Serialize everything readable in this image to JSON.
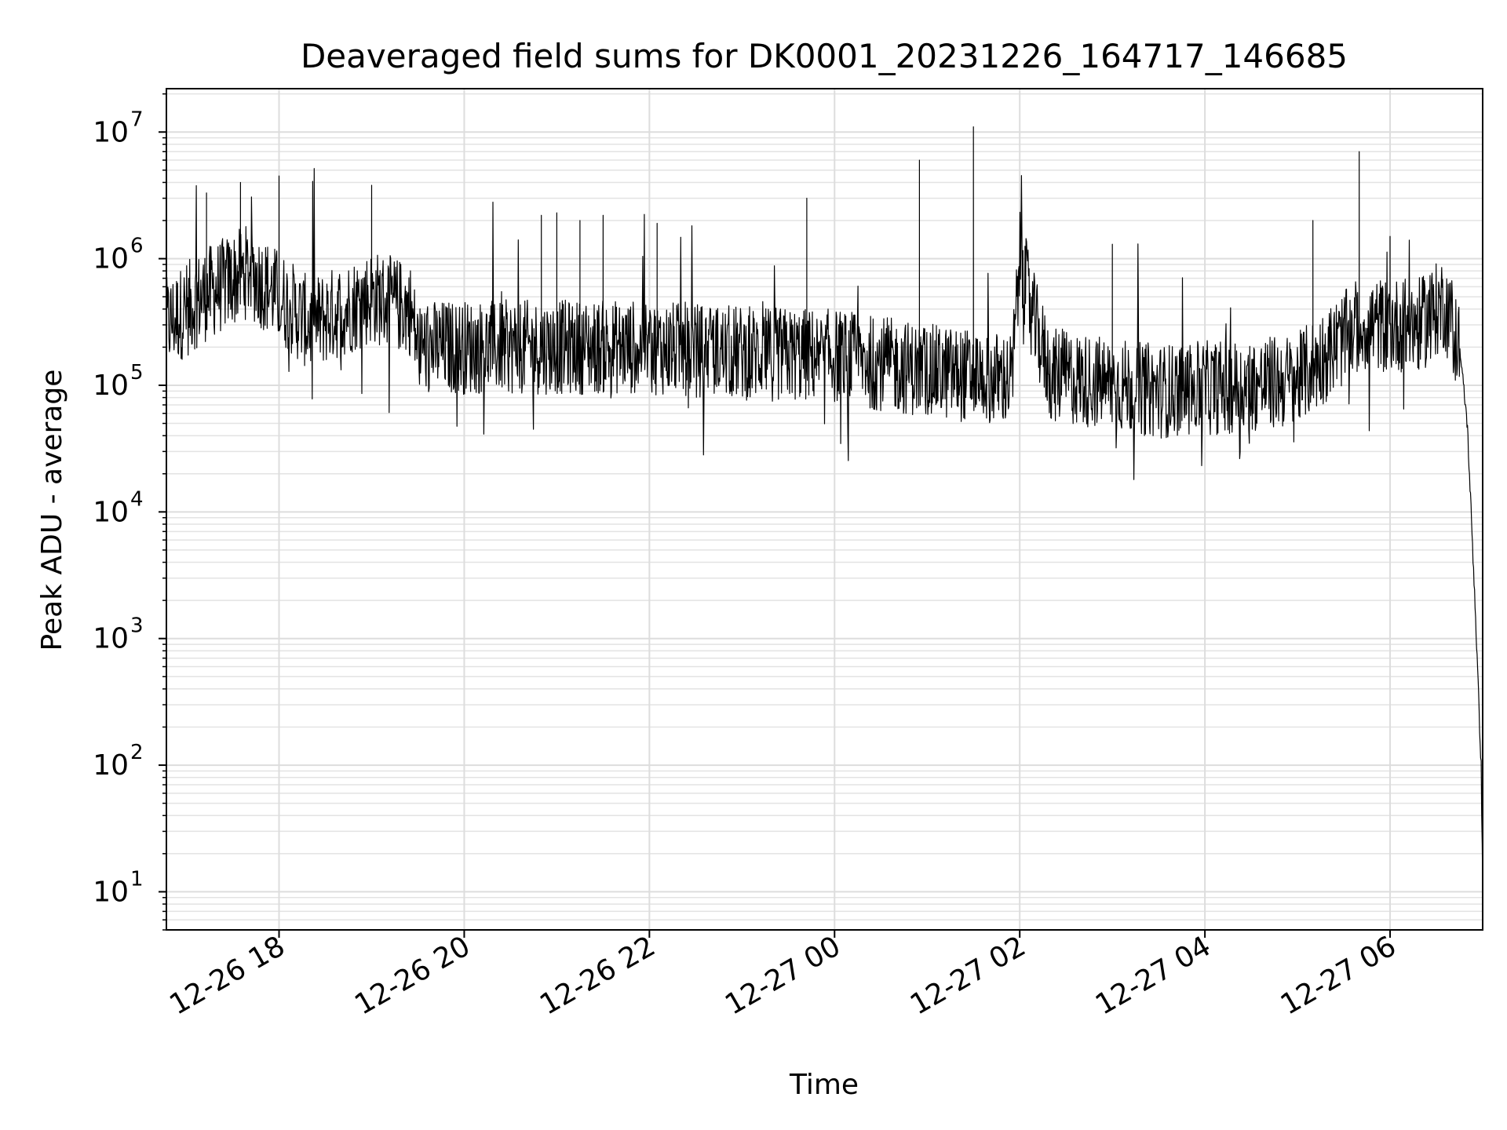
{
  "chart_data": {
    "type": "line",
    "title": "Deaveraged field sums for DK0001_20231226_164717_146685",
    "xlabel": "Time",
    "ylabel": "Peak ADU - average",
    "yscale": "log",
    "ylim": [
      5,
      22000000
    ],
    "xlim": [
      "2023-12-26 16:47",
      "2023-12-27 07:00"
    ],
    "grid": {
      "major": true,
      "minor_y": true
    },
    "line_color": "#000000",
    "x_ticks": [
      {
        "t": "2023-12-26 18:00",
        "label": "12-26 18"
      },
      {
        "t": "2023-12-26 20:00",
        "label": "12-26 20"
      },
      {
        "t": "2023-12-26 22:00",
        "label": "12-26 22"
      },
      {
        "t": "2023-12-27 00:00",
        "label": "12-27 00"
      },
      {
        "t": "2023-12-27 02:00",
        "label": "12-27 02"
      },
      {
        "t": "2023-12-27 04:00",
        "label": "12-27 04"
      },
      {
        "t": "2023-12-27 06:00",
        "label": "12-27 06"
      }
    ],
    "y_ticks": [
      {
        "value": 10,
        "base": "10",
        "exp": "1"
      },
      {
        "value": 100,
        "base": "10",
        "exp": "2"
      },
      {
        "value": 1000,
        "base": "10",
        "exp": "3"
      },
      {
        "value": 10000,
        "base": "10",
        "exp": "4"
      },
      {
        "value": 100000,
        "base": "10",
        "exp": "5"
      },
      {
        "value": 1000000,
        "base": "10",
        "exp": "6"
      },
      {
        "value": 10000000,
        "base": "10",
        "exp": "7"
      }
    ],
    "series": [
      {
        "description_points": "baseline trend of the noisy signal (time, value)",
        "trend": [
          [
            "2023-12-26 16:47",
            300000
          ],
          [
            "2023-12-26 17:10",
            500000
          ],
          [
            "2023-12-26 17:40",
            800000
          ],
          [
            "2023-12-26 18:00",
            500000
          ],
          [
            "2023-12-26 18:20",
            300000
          ],
          [
            "2023-12-26 19:00",
            500000
          ],
          [
            "2023-12-26 19:25",
            400000
          ],
          [
            "2023-12-26 19:30",
            200000
          ],
          [
            "2023-12-26 21:00",
            200000
          ],
          [
            "2023-12-26 22:00",
            200000
          ],
          [
            "2023-12-26 23:00",
            180000
          ],
          [
            "2023-12-27 00:00",
            170000
          ],
          [
            "2023-12-27 01:00",
            130000
          ],
          [
            "2023-12-27 01:55",
            110000
          ],
          [
            "2023-12-27 02:00",
            1000000
          ],
          [
            "2023-12-27 02:10",
            300000
          ],
          [
            "2023-12-27 02:20",
            120000
          ],
          [
            "2023-12-27 03:30",
            90000
          ],
          [
            "2023-12-27 04:30",
            100000
          ],
          [
            "2023-12-27 05:00",
            110000
          ],
          [
            "2023-12-27 05:40",
            300000
          ],
          [
            "2023-12-27 06:20",
            300000
          ],
          [
            "2023-12-27 06:35",
            450000
          ],
          [
            "2023-12-27 06:45",
            200000
          ],
          [
            "2023-12-27 06:50",
            50000
          ],
          [
            "2023-12-27 06:55",
            2000
          ],
          [
            "2023-12-27 06:59",
            100
          ],
          [
            "2023-12-27 07:00",
            10
          ]
        ],
        "spikes": [
          [
            "2023-12-26 17:13",
            3300000
          ],
          [
            "2023-12-26 17:35",
            4000000
          ],
          [
            "2023-12-26 18:00",
            4500000
          ],
          [
            "2023-12-26 19:00",
            3800000
          ],
          [
            "2023-12-26 20:50",
            2200000
          ],
          [
            "2023-12-26 21:00",
            2300000
          ],
          [
            "2023-12-26 21:15",
            2000000
          ],
          [
            "2023-12-26 21:30",
            2200000
          ],
          [
            "2023-12-26 22:05",
            1900000
          ],
          [
            "2023-12-26 23:42",
            3000000
          ],
          [
            "2023-12-27 00:55",
            6000000
          ],
          [
            "2023-12-27 01:30",
            11000000
          ],
          [
            "2023-12-27 03:00",
            1300000
          ],
          [
            "2023-12-27 05:10",
            2000000
          ],
          [
            "2023-12-27 05:40",
            7000000
          ],
          [
            "2023-12-27 06:00",
            1500000
          ]
        ]
      }
    ]
  }
}
